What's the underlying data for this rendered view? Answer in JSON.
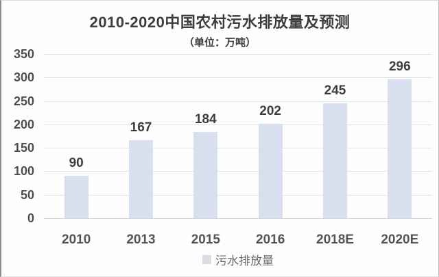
{
  "chart": {
    "colors": {
      "bar_fill": "#d8dfee",
      "gridline": "#e3e4e6",
      "baseline": "#d4d5d8",
      "title_text": "#3d3d3d",
      "axis_text": "#555555",
      "data_label_text": "#3d3d3d",
      "legend_swatch": "#d9dce3"
    }
  },
  "chart_data": {
    "type": "bar",
    "title": "2010-2020中国农村污水排放量及预测",
    "subtitle": "（单位：万吨）",
    "unit": "万吨",
    "categories": [
      "2010",
      "2013",
      "2015",
      "2016",
      "2018E",
      "2020E"
    ],
    "values": [
      90,
      167,
      184,
      202,
      245,
      296
    ],
    "series_name": "污水排放量",
    "xlabel": "",
    "ylabel": "",
    "ylim": [
      0,
      350
    ],
    "ytick_interval": 50,
    "ytick_labels": [
      "0",
      "50",
      "100",
      "150",
      "200",
      "250",
      "300",
      "350"
    ],
    "grid": true,
    "data_labels": true,
    "legend_position": "bottom"
  }
}
